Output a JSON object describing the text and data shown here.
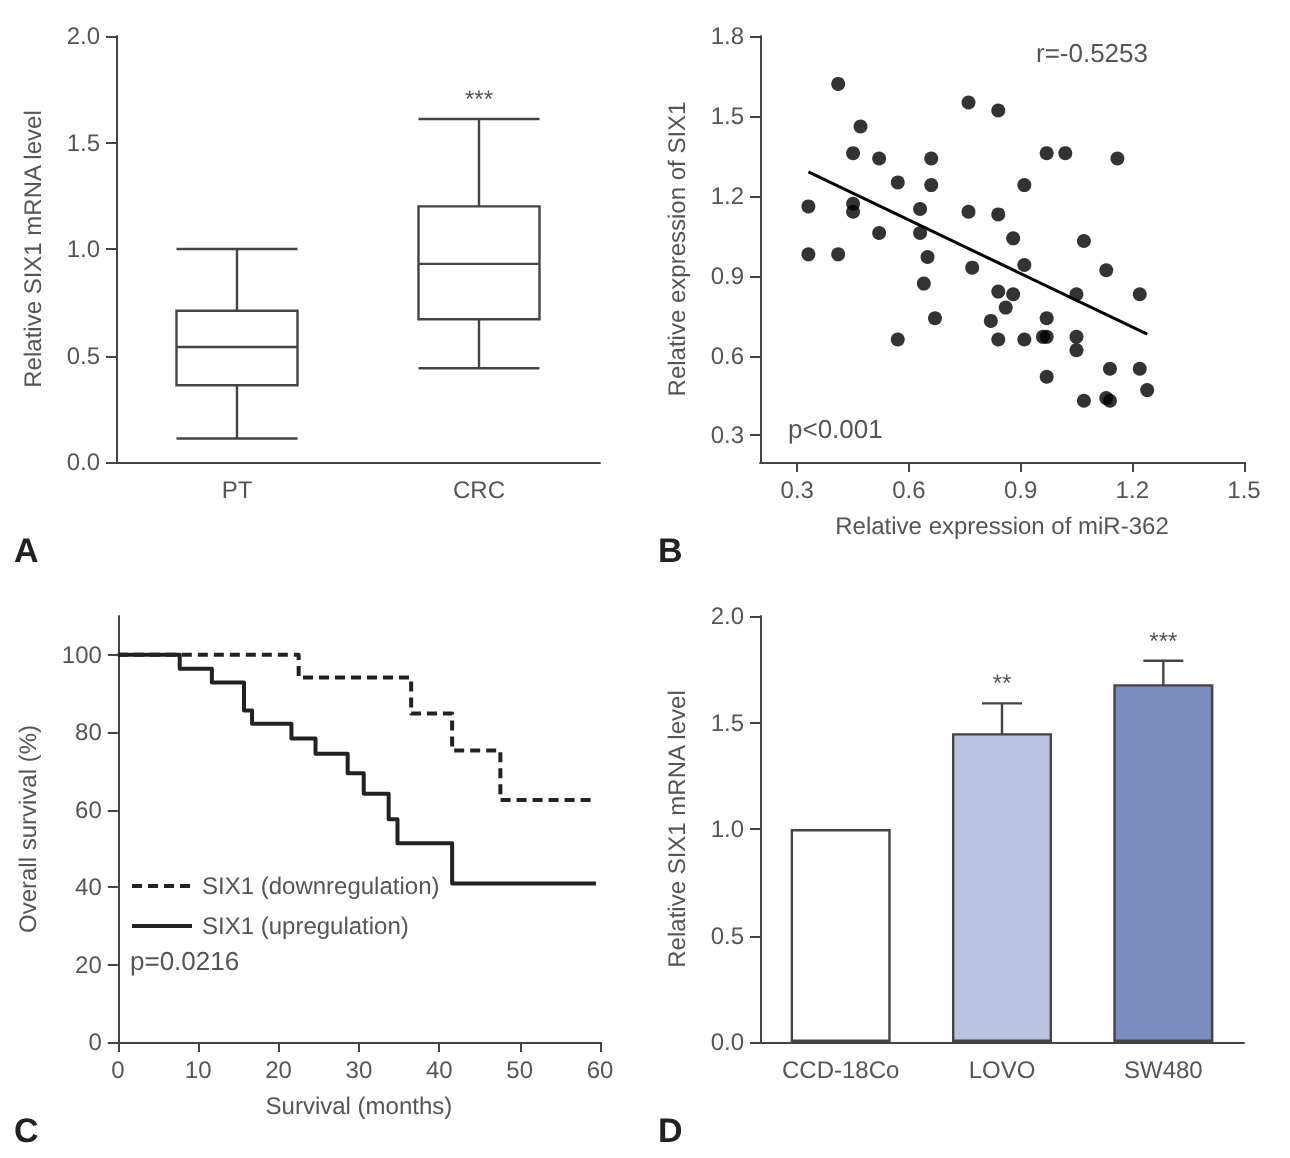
{
  "chart_data": [
    {
      "type": "box",
      "title": "A",
      "ylabel": "Relative SIX1 mRNA level",
      "categories": [
        "PT",
        "CRC"
      ],
      "boxes": [
        {
          "low": 0.11,
          "q1": 0.36,
          "median": 0.54,
          "q3": 0.71,
          "high": 1.0
        },
        {
          "low": 0.44,
          "q1": 0.67,
          "median": 0.93,
          "q3": 1.2,
          "high": 1.61
        }
      ],
      "ylim": [
        0,
        2
      ],
      "yticks": [
        {
          "value": 0,
          "label": "0.0"
        },
        0.5,
        {
          "value": 1,
          "label": "1.0"
        },
        1.5,
        {
          "value": 2,
          "label": "2.0"
        }
      ],
      "annotations": [
        {
          "text": "***",
          "x": "CRC",
          "y": 1.61
        }
      ]
    },
    {
      "type": "scatter",
      "title": "B",
      "xlabel": "Relative expression of miR-362",
      "ylabel": "Relative expression of SIX1",
      "xlim": [
        0.2,
        1.5
      ],
      "xticks": [
        0.3,
        0.6,
        0.9,
        1.2,
        1.5
      ],
      "ylim": [
        0.2,
        1.8
      ],
      "yticks": [
        0.3,
        0.6,
        0.9,
        1.2,
        1.5,
        1.8
      ],
      "series": [
        {
          "type": "scatter",
          "color": "#000000",
          "marker": "circle",
          "x": [
            0.33,
            0.33,
            0.41,
            0.41,
            0.45,
            0.45,
            0.45,
            0.47,
            0.52,
            0.52,
            0.57,
            0.57,
            0.63,
            0.63,
            0.64,
            0.65,
            0.66,
            0.66,
            0.67,
            0.76,
            0.76,
            0.77,
            0.84,
            0.84,
            0.84,
            0.84,
            0.82,
            0.86,
            0.88,
            0.88,
            0.91,
            0.91,
            0.91,
            0.96,
            0.97,
            0.97,
            0.97,
            0.97,
            1.02,
            1.07,
            1.05,
            1.05,
            1.05,
            1.07,
            1.13,
            1.13,
            1.14,
            1.14,
            1.16,
            1.22,
            1.22,
            1.24
          ],
          "values": [
            1.16,
            0.98,
            1.62,
            0.98,
            1.36,
            1.17,
            1.14,
            1.46,
            1.34,
            1.06,
            1.25,
            0.66,
            1.15,
            1.06,
            0.87,
            0.97,
            1.34,
            1.24,
            0.74,
            1.55,
            1.14,
            0.93,
            1.52,
            1.13,
            0.84,
            0.66,
            0.73,
            0.78,
            1.04,
            0.83,
            1.24,
            0.94,
            0.66,
            0.67,
            1.36,
            0.74,
            0.67,
            0.52,
            1.36,
            1.03,
            0.83,
            0.67,
            0.62,
            0.43,
            0.92,
            0.44,
            0.55,
            0.43,
            1.34,
            0.83,
            0.55,
            0.47
          ]
        },
        {
          "type": "line",
          "color": "#000000",
          "marker": "none",
          "x": [
            0.33,
            1.24
          ],
          "values": [
            1.29,
            0.68
          ]
        }
      ],
      "annotations": [
        "r=-0.5253",
        "p<0.001"
      ]
    },
    {
      "type": "step",
      "title": "C",
      "xlabel": "Survival (months)",
      "ylabel": "Overall survival (%)",
      "marker": "none",
      "legend": "bottom left",
      "xlim": [
        0,
        60
      ],
      "xticks": [
        0,
        10,
        20,
        30,
        40,
        50,
        60
      ],
      "ylim": [
        0,
        110
      ],
      "yticks": [
        0,
        20,
        40,
        60,
        80,
        100
      ],
      "series": [
        {
          "name": "SIX1 (downregulation)",
          "color": "#222222",
          "line_style": "dashed",
          "x": [
            0,
            22.5,
            36.5,
            41.6,
            47.6,
            59.5
          ],
          "values": [
            100,
            94.1,
            84.8,
            75.3,
            62.5,
            62.5
          ]
        },
        {
          "name": "SIX1 (upregulation)",
          "color": "#222222",
          "line_style": "solid",
          "x": [
            0,
            7.7,
            11.7,
            15.7,
            16.7,
            21.6,
            24.6,
            28.6,
            30.6,
            33.7,
            34.8,
            41.6,
            59.5
          ],
          "values": [
            100,
            96.4,
            92.8,
            85.6,
            82.2,
            78.4,
            74.4,
            69.4,
            64.1,
            57.5,
            51.3,
            40.9,
            40.9
          ]
        }
      ],
      "annotations": [
        "p=0.0216"
      ]
    },
    {
      "type": "bar",
      "title": "D",
      "ylabel": "Relative SIX1 mRNA level",
      "categories": [
        "CCD-18Co",
        "LOVO",
        "SW480"
      ],
      "values": [
        1.0,
        1.45,
        1.68
      ],
      "colors": [
        "#ffffff",
        "#b9c3df",
        "#7a8cc0"
      ],
      "errors": [
        null,
        0.14,
        0.11
      ],
      "ylim": [
        0,
        2
      ],
      "yticks": [
        {
          "value": 0,
          "label": "0.0"
        },
        0.5,
        {
          "value": 1,
          "label": "1.0"
        },
        1.5,
        {
          "value": 2,
          "label": "2.0"
        }
      ],
      "annotations": [
        {
          "text": "**",
          "x": "LOVO",
          "y": 1.59
        },
        {
          "text": "***",
          "x": "SW480",
          "y": 1.79
        }
      ]
    }
  ]
}
